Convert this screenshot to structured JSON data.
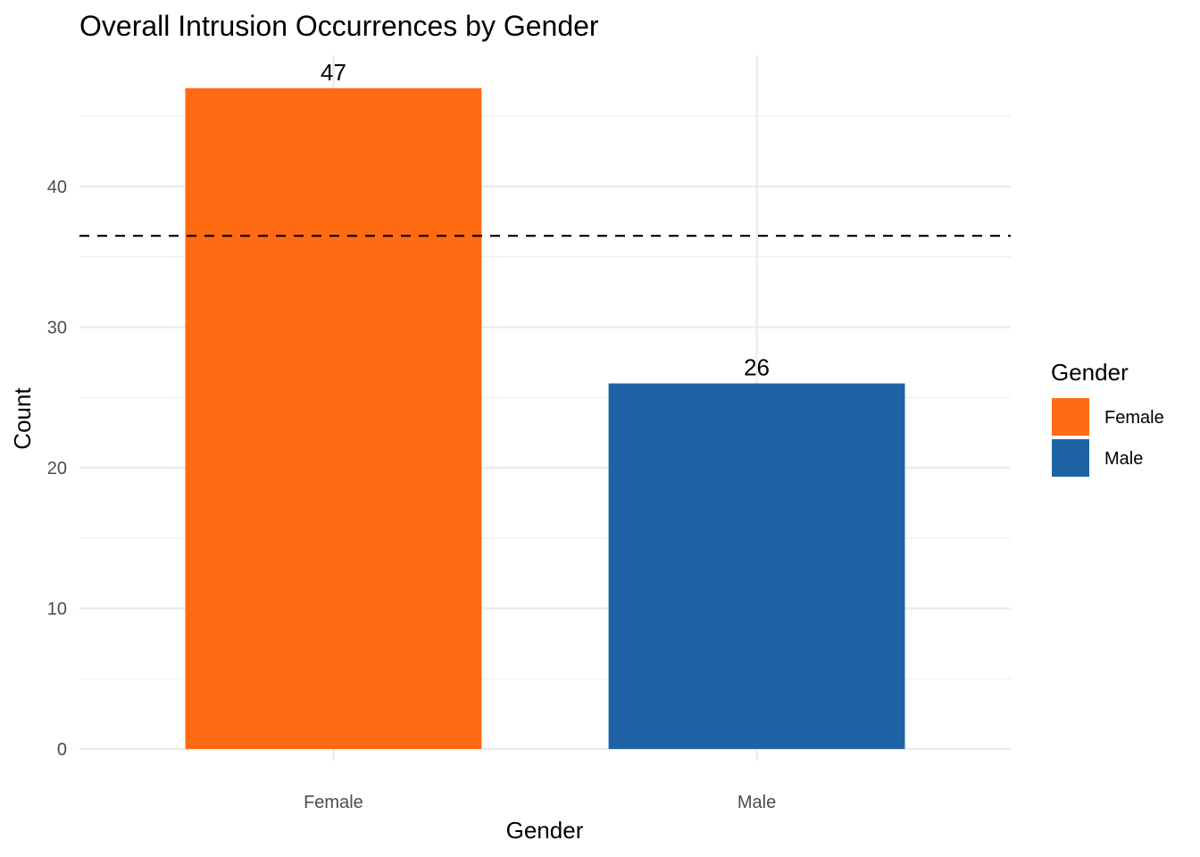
{
  "chart_data": {
    "type": "bar",
    "title": "Overall Intrusion Occurrences by Gender",
    "xlabel": "Gender",
    "ylabel": "Count",
    "categories": [
      "Female",
      "Male"
    ],
    "values": [
      47,
      26
    ],
    "data_labels": [
      "47",
      "26"
    ],
    "colors": [
      "#ff6a13",
      "#1f63a5"
    ],
    "ylim": [
      0,
      49.35
    ],
    "y_ticks": [
      0,
      10,
      20,
      30,
      40
    ],
    "y_tick_labels": [
      "0",
      "10",
      "20",
      "30",
      "40"
    ],
    "y_minor_ticks": [
      5,
      15,
      25,
      35,
      45
    ],
    "reference_line": {
      "value": 36.5,
      "style": "dashed",
      "color": "#000000"
    },
    "grid": true,
    "legend": {
      "title": "Gender",
      "placement": "right",
      "entries": [
        {
          "label": "Female",
          "color": "#ff6a13"
        },
        {
          "label": "Male",
          "color": "#1f63a5"
        }
      ]
    }
  }
}
